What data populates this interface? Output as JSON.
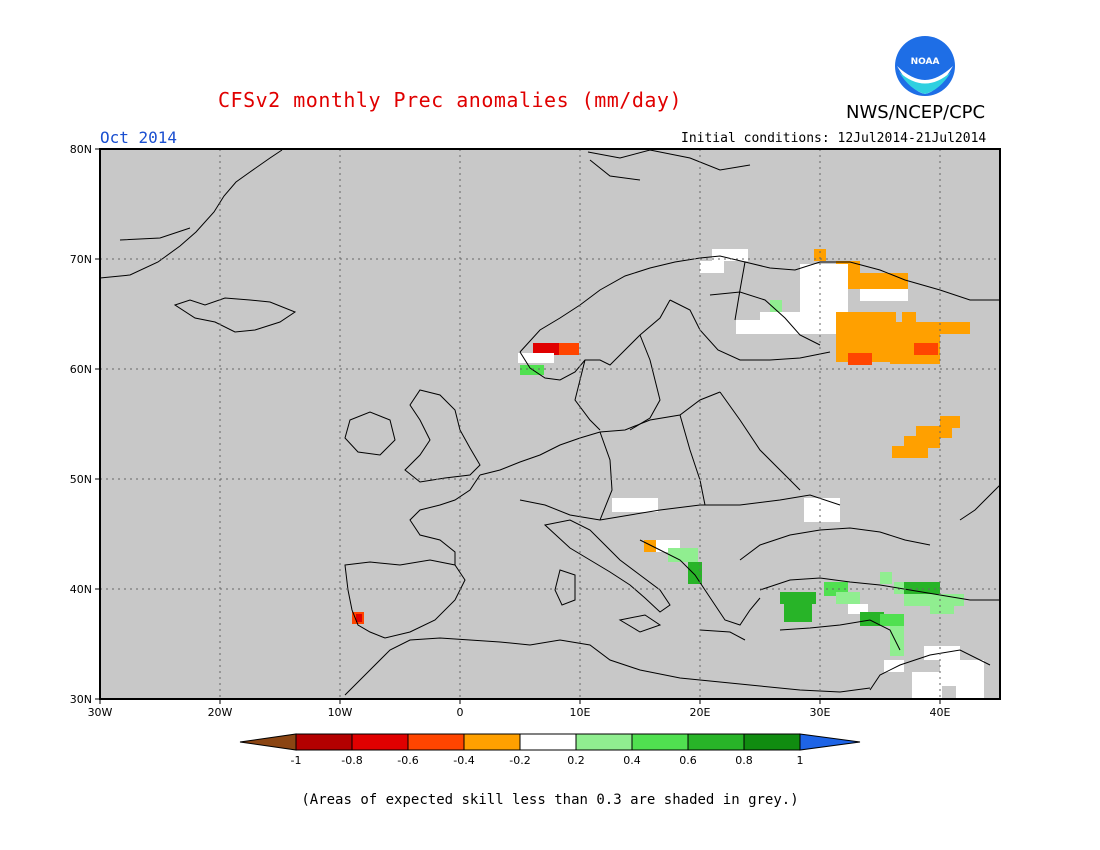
{
  "header": {
    "title": "CFSv2 monthly Prec anomalies (mm/day)",
    "organization": "NWS/NCEP/CPC",
    "logo_text": "NOAA",
    "valid_month": "Oct 2014",
    "initial_conditions": "Initial conditions: 12Jul2014-21Jul2014"
  },
  "map": {
    "lon_range": [
      -30,
      45
    ],
    "lat_range": [
      30,
      80
    ],
    "lat_labels": [
      "80N",
      "70N",
      "60N",
      "50N",
      "40N",
      "30N"
    ],
    "lon_labels": [
      "30W",
      "20W",
      "10W",
      "0",
      "10E",
      "20E",
      "30E",
      "40E"
    ],
    "mask_color": "#c8c8c8",
    "mask_meaning": "skill < 0.3"
  },
  "colorbar": {
    "tick_labels": [
      "-1",
      "-0.8",
      "-0.6",
      "-0.4",
      "-0.2",
      "0.2",
      "0.4",
      "0.6",
      "0.8",
      "1"
    ],
    "colors": [
      "#8b4513",
      "#b30000",
      "#e00000",
      "#ff4500",
      "#ffa000",
      "#ffffff",
      "#90ee90",
      "#50e050",
      "#28b428",
      "#108c10",
      "#1e64e6"
    ]
  },
  "footnote": "(Areas of expected skill less than 0.3 are shaded in grey.)"
}
